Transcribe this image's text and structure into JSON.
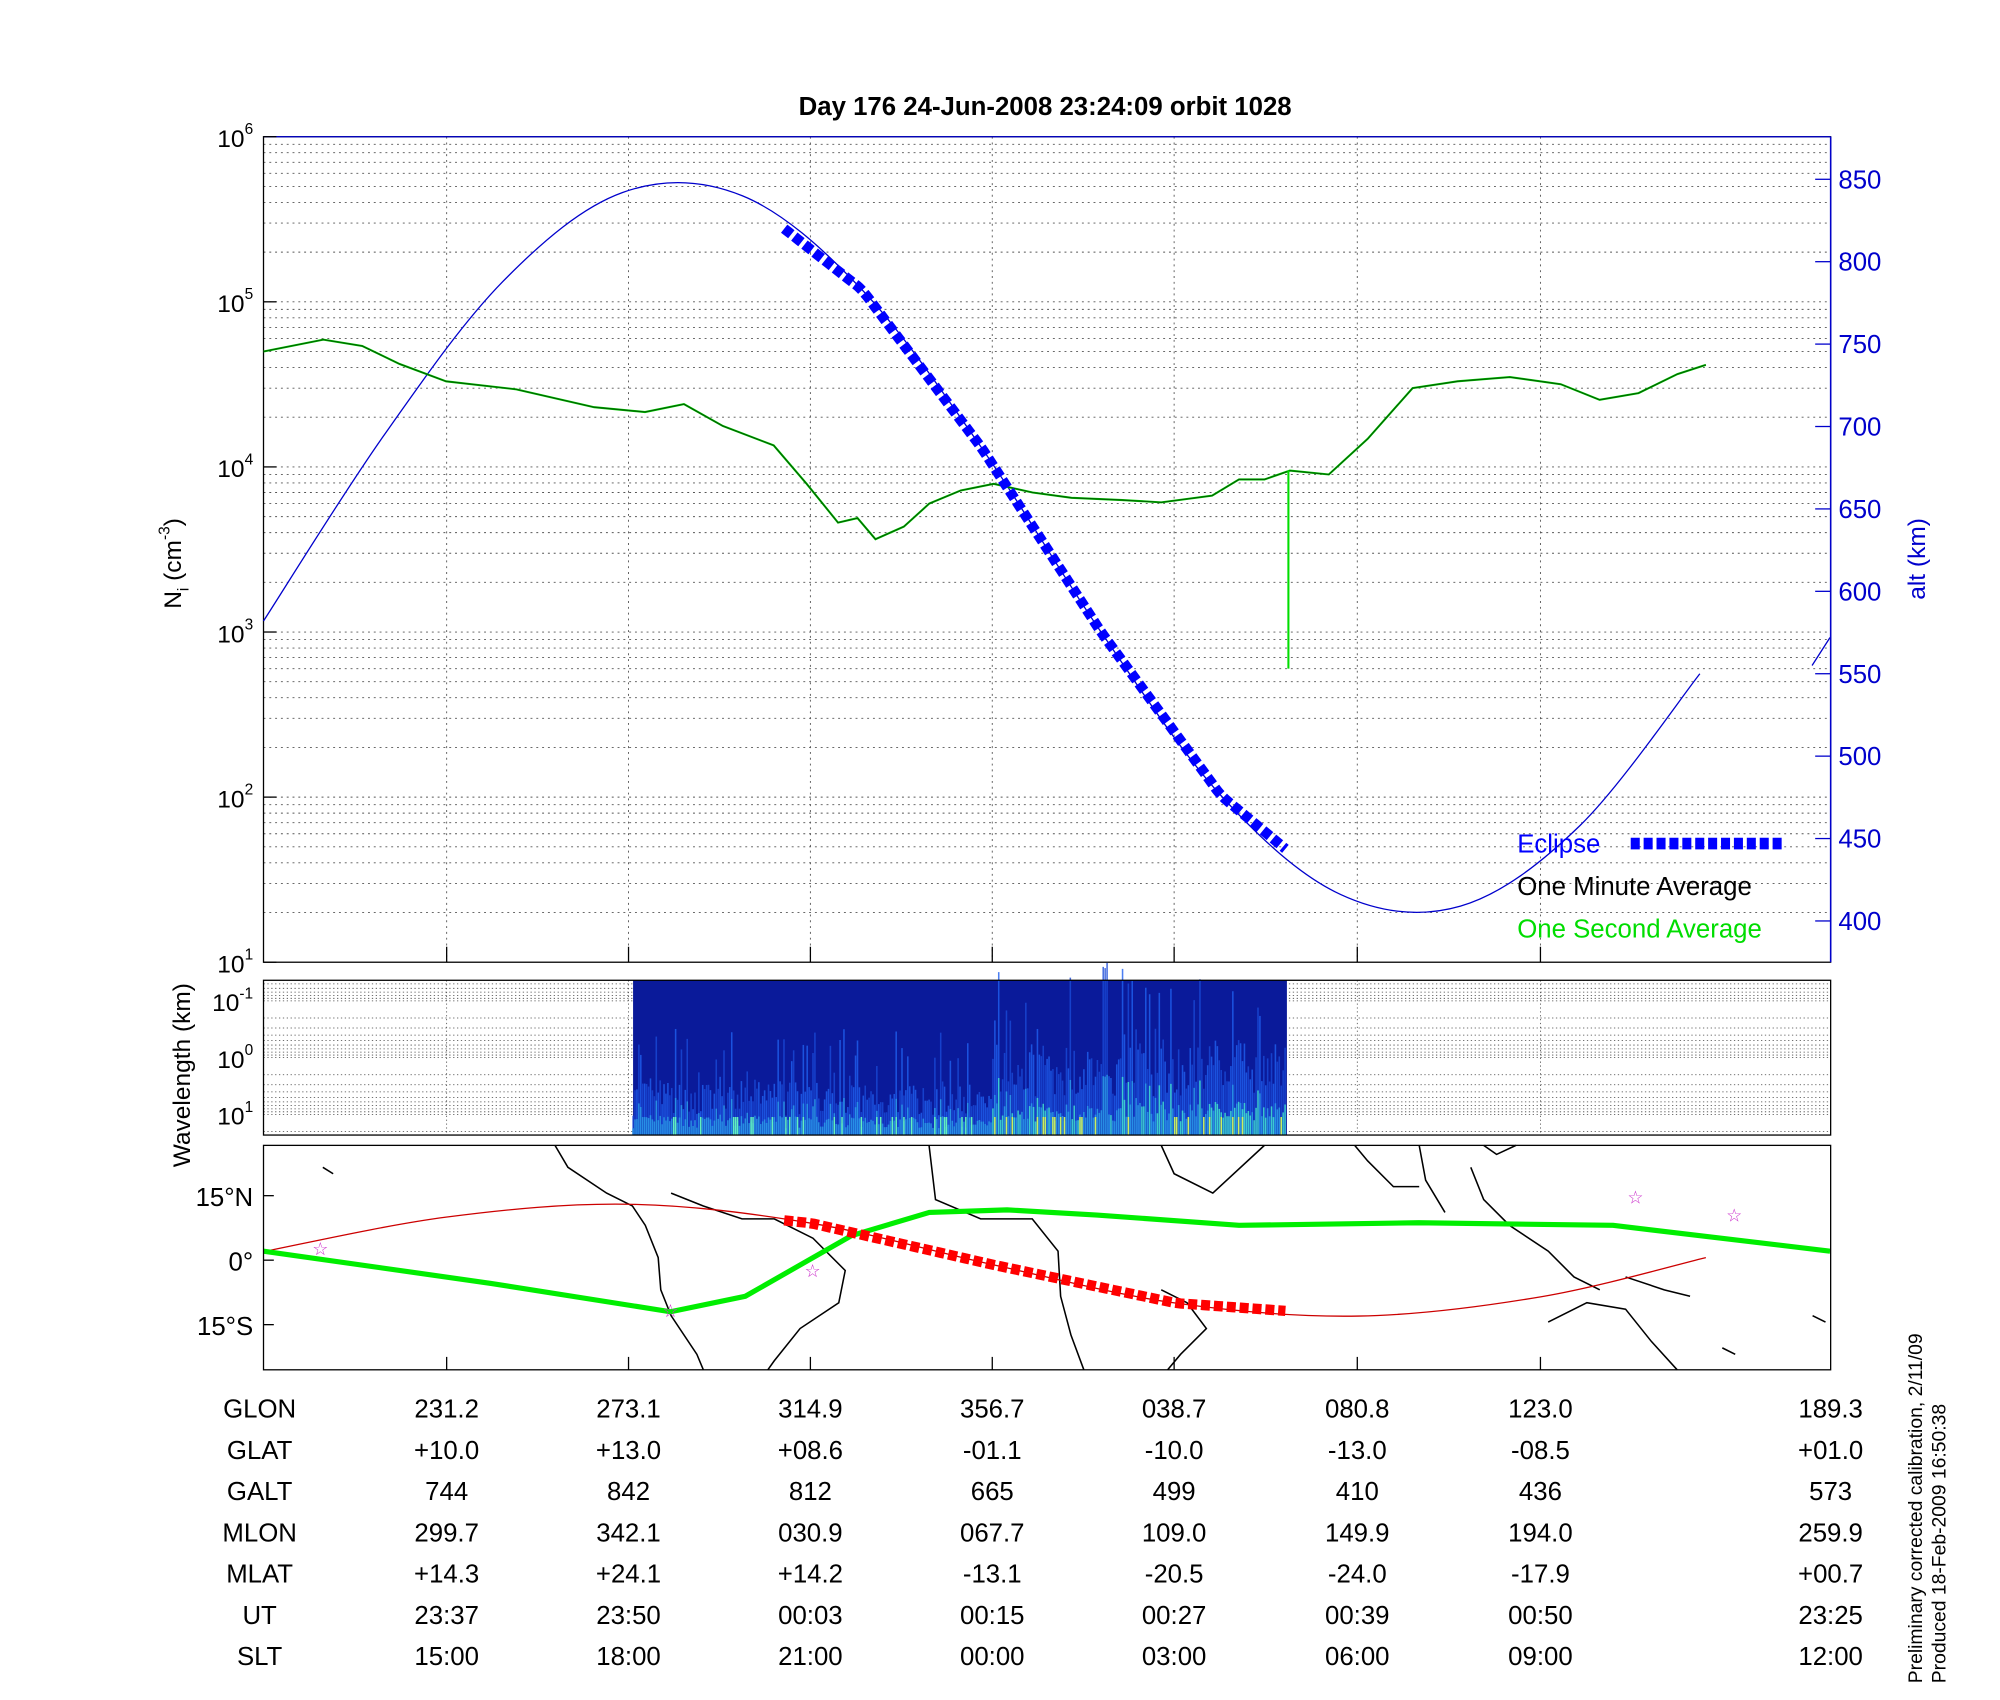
{
  "title": "Day 176  24-Jun-2008 23:24:09   orbit 1028",
  "colors": {
    "alt": "#0000cc",
    "eclipse": "#0000ff",
    "minute_avg": "#006600",
    "second_avg": "#00dd00",
    "map_track": "#cc0000",
    "map_eclipse": "#ff0000",
    "mag_equator": "#00ee00",
    "star": "#cc33cc"
  },
  "footer": [
    "Preliminary corrected calibration, 2/11/09",
    "Produced 18-Feb-2009 16:50:38"
  ],
  "table": {
    "rows": [
      {
        "label": "GLON",
        "values": [
          "231.2",
          "273.1",
          "314.9",
          "356.7",
          "038.7",
          "080.8",
          "123.0",
          "189.3"
        ]
      },
      {
        "label": "GLAT",
        "values": [
          "+10.0",
          "+13.0",
          "+08.6",
          "-01.1",
          "-10.0",
          "-13.0",
          "-08.5",
          "+01.0"
        ]
      },
      {
        "label": "GALT",
        "values": [
          "744",
          "842",
          "812",
          "665",
          "499",
          "410",
          "436",
          "573"
        ]
      },
      {
        "label": "MLON",
        "values": [
          "299.7",
          "342.1",
          "030.9",
          "067.7",
          "109.0",
          "149.9",
          "194.0",
          "259.9"
        ]
      },
      {
        "label": "MLAT",
        "values": [
          "+14.3",
          "+24.1",
          "+14.2",
          "-13.1",
          "-20.5",
          "-24.0",
          "-17.9",
          "+00.7"
        ]
      },
      {
        "label": "UT",
        "values": [
          "23:37",
          "23:50",
          "00:03",
          "00:15",
          "00:27",
          "00:39",
          "00:50",
          "23:25"
        ]
      },
      {
        "label": "SLT",
        "values": [
          "15:00",
          "18:00",
          "21:00",
          "00:00",
          "03:00",
          "06:00",
          "09:00",
          "12:00"
        ]
      }
    ]
  },
  "chart_data": [
    {
      "type": "line",
      "title": "Day 176  24-Jun-2008 23:24:09   orbit 1028",
      "xunit": "minutes since orbit start",
      "xlim": [
        0,
        104.7
      ],
      "ylabel": {
        "base": "N",
        "sub": "i",
        "pre": " (cm",
        "sup": "-3",
        "post": ")"
      },
      "yscale": "log",
      "ylim": [
        10,
        1000000
      ],
      "ytick_exponents": [
        "1",
        "2",
        "3",
        "4",
        "5",
        "6"
      ],
      "y2label": "alt (km)",
      "y2lim": [
        375,
        875
      ],
      "y2ticks": [
        "400",
        "450",
        "500",
        "550",
        "600",
        "650",
        "700",
        "750",
        "800",
        "850"
      ],
      "grid": true,
      "legend_position": "bottom-right",
      "legend": [
        "Eclipse",
        "One Minute Average",
        "One Second Average"
      ],
      "series": [
        {
          "name": "One Minute Average",
          "axis": "left",
          "points": [
            [
              0,
              50000
            ],
            [
              4,
              59000
            ],
            [
              6.6,
              54000
            ],
            [
              9.1,
              42000
            ],
            [
              12.2,
              33000
            ],
            [
              16.9,
              29500
            ],
            [
              22.1,
              23000
            ],
            [
              25.5,
              21500
            ],
            [
              28.1,
              24000
            ],
            [
              30.7,
              17700
            ],
            [
              34.1,
              13500
            ],
            [
              36.3,
              7900
            ],
            [
              38.4,
              4600
            ],
            [
              39.7,
              4900
            ],
            [
              40.9,
              3650
            ],
            [
              42.8,
              4350
            ],
            [
              44.5,
              6000
            ],
            [
              46.6,
              7200
            ],
            [
              48.8,
              7900
            ],
            [
              51.4,
              7000
            ],
            [
              54,
              6500
            ],
            [
              57.4,
              6300
            ],
            [
              60,
              6100
            ],
            [
              63.4,
              6700
            ],
            [
              65.2,
              8400
            ],
            [
              66.9,
              8400
            ],
            [
              68.6,
              9500
            ],
            [
              71.2,
              9000
            ],
            [
              73.8,
              14800
            ],
            [
              76.8,
              30000
            ],
            [
              79.8,
              33000
            ],
            [
              83.3,
              35000
            ],
            [
              86.7,
              31700
            ],
            [
              89.3,
              25500
            ],
            [
              91.9,
              28000
            ],
            [
              94.5,
              36500
            ],
            [
              96.4,
              41500
            ]
          ]
        },
        {
          "name": "One Second Average spike",
          "axis": "left",
          "points": [
            [
              68.5,
              9500
            ],
            [
              68.5,
              600
            ]
          ]
        },
        {
          "name": "Altitude",
          "axis": "right",
          "points": [
            [
              0,
              582
            ],
            [
              8,
              694
            ],
            [
              16,
              788
            ],
            [
              24,
              842
            ],
            [
              32,
              840
            ],
            [
              40,
              783
            ],
            [
              48,
              687
            ],
            [
              56,
              575
            ],
            [
              64,
              476
            ],
            [
              72,
              416
            ],
            [
              80,
              409
            ],
            [
              88,
              458
            ],
            [
              96,
              550
            ]
          ]
        },
        {
          "name": "Altitude (next orbit)",
          "axis": "right",
          "points": [
            [
              103.5,
              555
            ],
            [
              104.7,
              572
            ]
          ]
        },
        {
          "name": "Eclipse",
          "axis": "right",
          "range": [
            34.8,
            68.4
          ]
        }
      ]
    },
    {
      "type": "heatmap",
      "ylabel": "Wavelength (km)",
      "yscale": "log",
      "ytick_exponents": [
        "-1",
        "0",
        "1"
      ],
      "data_range_minutes": [
        24.7,
        68.4
      ]
    },
    {
      "type": "line",
      "ylabel_ticks": [
        "15°N",
        "0°",
        "15°S"
      ],
      "ylim": [
        -26,
        26
      ],
      "series": [
        {
          "name": "Ground track",
          "points": [
            [
              0,
              2
            ],
            [
              12.2,
              10
            ],
            [
              24.4,
              13
            ],
            [
              36.6,
              8.6
            ],
            [
              48.8,
              -1.1
            ],
            [
              61,
              -10
            ],
            [
              73.2,
              -13
            ],
            [
              85.4,
              -8.5
            ],
            [
              96.4,
              0.6
            ]
          ]
        },
        {
          "name": "Magnetic equator",
          "points": [
            [
              0,
              2.1
            ],
            [
              15.2,
              -5.4
            ],
            [
              27.2,
              -12
            ],
            [
              32.2,
              -8.4
            ],
            [
              39.3,
              5.7
            ],
            [
              44.5,
              11.1
            ],
            [
              49.7,
              11.7
            ],
            [
              55.7,
              10.5
            ],
            [
              65.2,
              8.1
            ],
            [
              77.2,
              8.7
            ],
            [
              90.2,
              8.1
            ],
            [
              104.7,
              2.1
            ]
          ]
        },
        {
          "name": "Eclipse",
          "range": [
            34.8,
            68.4
          ]
        },
        {
          "name": "Stars",
          "points": [
            [
              3.8,
              2.7
            ],
            [
              27.2,
              -11.7
            ],
            [
              36.7,
              -2.4
            ],
            [
              91.7,
              14.7
            ],
            [
              98.3,
              10.5
            ]
          ]
        }
      ]
    }
  ]
}
